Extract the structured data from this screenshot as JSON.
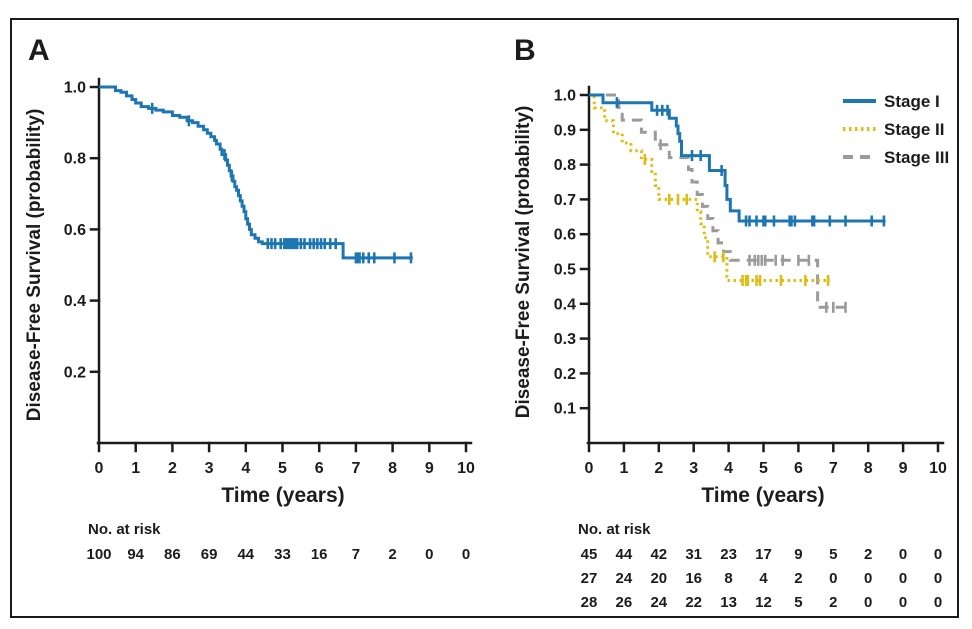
{
  "figure": {
    "panels": [
      {
        "letter": "A",
        "y_axis_title": "Disease-Free Survival (probability)",
        "x_axis_title": "Time (years)",
        "y_tick_labels": [
          "1.0",
          "0.8",
          "0.6",
          "0.4",
          "0.2"
        ],
        "y_tick_values": [
          1.0,
          0.8,
          0.6,
          0.4,
          0.2
        ],
        "x_tick_labels": [
          "0",
          "1",
          "2",
          "3",
          "4",
          "5",
          "6",
          "7",
          "8",
          "9",
          "10"
        ],
        "x_tick_values": [
          0,
          1,
          2,
          3,
          4,
          5,
          6,
          7,
          8,
          9,
          10
        ],
        "at_risk_label": "No. at risk",
        "at_risk_rows": [
          [
            "100",
            "94",
            "86",
            "69",
            "44",
            "33",
            "16",
            "7",
            "2",
            "0",
            "0"
          ]
        ]
      },
      {
        "letter": "B",
        "y_axis_title": "Disease-Free Survival (probability)",
        "x_axis_title": "Time (years)",
        "y_tick_labels": [
          "1.0",
          "0.9",
          "0.8",
          "0.7",
          "0.6",
          "0.5",
          "0.4",
          "0.3",
          "0.2",
          "0.1"
        ],
        "y_tick_values": [
          1.0,
          0.9,
          0.8,
          0.7,
          0.6,
          0.5,
          0.4,
          0.3,
          0.2,
          0.1
        ],
        "x_tick_labels": [
          "0",
          "1",
          "2",
          "3",
          "4",
          "5",
          "6",
          "7",
          "8",
          "9",
          "10"
        ],
        "x_tick_values": [
          0,
          1,
          2,
          3,
          4,
          5,
          6,
          7,
          8,
          9,
          10
        ],
        "at_risk_label": "No. at risk",
        "at_risk_rows": [
          [
            "45",
            "44",
            "42",
            "31",
            "23",
            "17",
            "9",
            "5",
            "2",
            "0",
            "0"
          ],
          [
            "27",
            "24",
            "20",
            "16",
            "8",
            "4",
            "2",
            "0",
            "0",
            "0",
            "0"
          ],
          [
            "28",
            "26",
            "24",
            "22",
            "13",
            "12",
            "5",
            "2",
            "0",
            "0",
            "0"
          ]
        ],
        "legend": [
          {
            "label": "Stage I",
            "color": "#1d76b2",
            "dash": "solid"
          },
          {
            "label": "Stage II",
            "color": "#dfbc13",
            "dash": "dotted"
          },
          {
            "label": "Stage III",
            "color": "#9b9b9b",
            "dash": "dashed"
          }
        ]
      }
    ],
    "colors": {
      "ink": "#1c1c1c",
      "blue": "#1d76b2",
      "gold": "#dfbc13",
      "gray": "#9b9b9b"
    }
  },
  "chart_data": [
    {
      "type": "line",
      "subtype": "kaplan-meier-step",
      "panel": "A",
      "xlabel": "Time (years)",
      "ylabel": "Disease-Free Survival (probability)",
      "xlim": [
        0,
        10
      ],
      "ylim": [
        0,
        1.0
      ],
      "xticks": [
        0,
        1,
        2,
        3,
        4,
        5,
        6,
        7,
        8,
        9,
        10
      ],
      "yticks": [
        0.2,
        0.4,
        0.6,
        0.8,
        1.0
      ],
      "grid": false,
      "legend_position": null,
      "series": [
        {
          "name": "",
          "color": "#1d76b2",
          "line_style": "solid",
          "steps": [
            [
              0,
              1.0
            ],
            [
              0.45,
              0.99
            ],
            [
              0.6,
              0.985
            ],
            [
              0.75,
              0.975
            ],
            [
              0.9,
              0.965
            ],
            [
              1.0,
              0.955
            ],
            [
              1.15,
              0.945
            ],
            [
              1.35,
              0.94
            ],
            [
              1.55,
              0.935
            ],
            [
              1.75,
              0.93
            ],
            [
              2.0,
              0.92
            ],
            [
              2.2,
              0.915
            ],
            [
              2.4,
              0.905
            ],
            [
              2.55,
              0.9
            ],
            [
              2.7,
              0.89
            ],
            [
              2.85,
              0.88
            ],
            [
              2.95,
              0.87
            ],
            [
              3.05,
              0.86
            ],
            [
              3.15,
              0.85
            ],
            [
              3.2,
              0.84
            ],
            [
              3.3,
              0.825
            ],
            [
              3.35,
              0.81
            ],
            [
              3.45,
              0.795
            ],
            [
              3.5,
              0.78
            ],
            [
              3.55,
              0.765
            ],
            [
              3.6,
              0.75
            ],
            [
              3.65,
              0.735
            ],
            [
              3.7,
              0.72
            ],
            [
              3.75,
              0.71
            ],
            [
              3.8,
              0.695
            ],
            [
              3.85,
              0.68
            ],
            [
              3.9,
              0.665
            ],
            [
              3.95,
              0.65
            ],
            [
              4.0,
              0.63
            ],
            [
              4.05,
              0.615
            ],
            [
              4.1,
              0.6
            ],
            [
              4.15,
              0.585
            ],
            [
              4.25,
              0.575
            ],
            [
              4.35,
              0.565
            ],
            [
              4.45,
              0.56
            ],
            [
              6.65,
              0.52
            ]
          ],
          "end_time": 8.55,
          "censor_marks": [
            [
              1.45,
              0.94
            ],
            [
              2.45,
              0.905
            ],
            [
              3.42,
              0.81
            ],
            [
              3.62,
              0.75
            ],
            [
              4.6,
              0.56
            ],
            [
              4.7,
              0.56
            ],
            [
              4.8,
              0.56
            ],
            [
              4.95,
              0.56
            ],
            [
              5.05,
              0.56
            ],
            [
              5.1,
              0.56
            ],
            [
              5.15,
              0.56
            ],
            [
              5.2,
              0.56
            ],
            [
              5.25,
              0.56
            ],
            [
              5.3,
              0.56
            ],
            [
              5.35,
              0.56
            ],
            [
              5.4,
              0.56
            ],
            [
              5.5,
              0.56
            ],
            [
              5.6,
              0.56
            ],
            [
              5.75,
              0.56
            ],
            [
              5.85,
              0.56
            ],
            [
              5.95,
              0.56
            ],
            [
              6.05,
              0.56
            ],
            [
              6.15,
              0.56
            ],
            [
              6.3,
              0.56
            ],
            [
              6.45,
              0.56
            ],
            [
              7.0,
              0.52
            ],
            [
              7.05,
              0.52
            ],
            [
              7.1,
              0.52
            ],
            [
              7.2,
              0.52
            ],
            [
              7.35,
              0.52
            ],
            [
              7.5,
              0.52
            ],
            [
              8.05,
              0.52
            ],
            [
              8.5,
              0.52
            ]
          ],
          "n_at_risk": {
            "times": [
              0,
              1,
              2,
              3,
              4,
              5,
              6,
              7,
              8,
              9,
              10
            ],
            "counts": [
              100,
              94,
              86,
              69,
              44,
              33,
              16,
              7,
              2,
              0,
              0
            ]
          }
        }
      ]
    },
    {
      "type": "line",
      "subtype": "kaplan-meier-step",
      "panel": "B",
      "xlabel": "Time (years)",
      "ylabel": "Disease-Free Survival (probability)",
      "xlim": [
        0,
        10
      ],
      "ylim": [
        0,
        1.0
      ],
      "xticks": [
        0,
        1,
        2,
        3,
        4,
        5,
        6,
        7,
        8,
        9,
        10
      ],
      "yticks": [
        0.1,
        0.2,
        0.3,
        0.4,
        0.5,
        0.6,
        0.7,
        0.8,
        0.9,
        1.0
      ],
      "grid": false,
      "legend_position": "upper right",
      "series": [
        {
          "name": "Stage I",
          "color": "#1d76b2",
          "line_style": "solid",
          "steps": [
            [
              0,
              1.0
            ],
            [
              0.4,
              0.978
            ],
            [
              1.8,
              0.956
            ],
            [
              2.3,
              0.933
            ],
            [
              2.5,
              0.911
            ],
            [
              2.55,
              0.889
            ],
            [
              2.6,
              0.867
            ],
            [
              2.65,
              0.826
            ],
            [
              3.45,
              0.783
            ],
            [
              3.9,
              0.74
            ],
            [
              3.95,
              0.7
            ],
            [
              4.05,
              0.667
            ],
            [
              4.3,
              0.638
            ]
          ],
          "end_time": 8.5,
          "censor_marks": [
            [
              0.8,
              0.978
            ],
            [
              1.95,
              0.956
            ],
            [
              2.1,
              0.956
            ],
            [
              2.25,
              0.956
            ],
            [
              2.95,
              0.826
            ],
            [
              3.2,
              0.826
            ],
            [
              3.8,
              0.783
            ],
            [
              4.5,
              0.638
            ],
            [
              4.6,
              0.638
            ],
            [
              4.8,
              0.638
            ],
            [
              5.0,
              0.638
            ],
            [
              5.05,
              0.638
            ],
            [
              5.3,
              0.638
            ],
            [
              5.75,
              0.638
            ],
            [
              5.8,
              0.638
            ],
            [
              5.9,
              0.638
            ],
            [
              6.4,
              0.638
            ],
            [
              6.45,
              0.638
            ],
            [
              6.9,
              0.638
            ],
            [
              7.35,
              0.638
            ],
            [
              8.1,
              0.638
            ],
            [
              8.45,
              0.638
            ]
          ],
          "n_at_risk": {
            "times": [
              0,
              1,
              2,
              3,
              4,
              5,
              6,
              7,
              8,
              9,
              10
            ],
            "counts": [
              45,
              44,
              42,
              31,
              23,
              17,
              9,
              5,
              2,
              0,
              0
            ]
          }
        },
        {
          "name": "Stage II",
          "color": "#dfbc13",
          "line_style": "dotted",
          "steps": [
            [
              0,
              1.0
            ],
            [
              0.15,
              0.963
            ],
            [
              0.45,
              0.926
            ],
            [
              0.7,
              0.889
            ],
            [
              0.95,
              0.862
            ],
            [
              1.2,
              0.84
            ],
            [
              1.5,
              0.815
            ],
            [
              1.8,
              0.78
            ],
            [
              1.9,
              0.74
            ],
            [
              2.0,
              0.7
            ],
            [
              3.1,
              0.665
            ],
            [
              3.2,
              0.63
            ],
            [
              3.3,
              0.59
            ],
            [
              3.4,
              0.535
            ],
            [
              3.95,
              0.467
            ]
          ],
          "end_time": 6.9,
          "censor_marks": [
            [
              1.6,
              0.815
            ],
            [
              2.3,
              0.7
            ],
            [
              2.55,
              0.7
            ],
            [
              2.8,
              0.7
            ],
            [
              3.6,
              0.535
            ],
            [
              3.85,
              0.535
            ],
            [
              4.4,
              0.467
            ],
            [
              4.5,
              0.467
            ],
            [
              4.55,
              0.467
            ],
            [
              4.8,
              0.467
            ],
            [
              4.9,
              0.467
            ],
            [
              5.5,
              0.467
            ],
            [
              6.2,
              0.467
            ],
            [
              6.85,
              0.467
            ]
          ],
          "n_at_risk": {
            "times": [
              0,
              1,
              2,
              3,
              4,
              5,
              6,
              7,
              8,
              9,
              10
            ],
            "counts": [
              27,
              24,
              20,
              16,
              8,
              4,
              2,
              0,
              0,
              0,
              0
            ]
          }
        },
        {
          "name": "Stage III",
          "color": "#9b9b9b",
          "line_style": "dashed",
          "steps": [
            [
              0,
              1.0
            ],
            [
              0.85,
              0.964
            ],
            [
              0.95,
              0.928
            ],
            [
              1.5,
              0.893
            ],
            [
              1.9,
              0.857
            ],
            [
              2.3,
              0.82
            ],
            [
              2.85,
              0.786
            ],
            [
              2.95,
              0.75
            ],
            [
              3.1,
              0.714
            ],
            [
              3.25,
              0.68
            ],
            [
              3.4,
              0.645
            ],
            [
              3.55,
              0.61
            ],
            [
              3.7,
              0.575
            ],
            [
              3.85,
              0.55
            ],
            [
              4.05,
              0.525
            ],
            [
              6.55,
              0.39
            ]
          ],
          "end_time": 7.45,
          "censor_marks": [
            [
              2.05,
              0.857
            ],
            [
              4.6,
              0.525
            ],
            [
              4.75,
              0.525
            ],
            [
              4.85,
              0.525
            ],
            [
              4.95,
              0.525
            ],
            [
              5.05,
              0.525
            ],
            [
              5.35,
              0.525
            ],
            [
              5.55,
              0.525
            ],
            [
              6.0,
              0.525
            ],
            [
              6.3,
              0.525
            ],
            [
              6.8,
              0.39
            ],
            [
              7.0,
              0.39
            ],
            [
              7.35,
              0.39
            ]
          ],
          "n_at_risk": {
            "times": [
              0,
              1,
              2,
              3,
              4,
              5,
              6,
              7,
              8,
              9,
              10
            ],
            "counts": [
              28,
              26,
              24,
              22,
              13,
              12,
              5,
              2,
              0,
              0,
              0
            ]
          }
        }
      ]
    }
  ]
}
